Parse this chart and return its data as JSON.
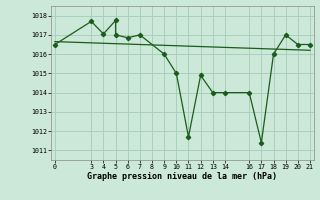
{
  "xlabel": "Graphe pression niveau de la mer (hPa)",
  "bg_color": "#cce8d8",
  "grid_color": "#aacfbc",
  "line_color": "#1a5c1a",
  "x_line": [
    0,
    3,
    4,
    5,
    5,
    6,
    7,
    9,
    10,
    11,
    12,
    13,
    14,
    16,
    17,
    18,
    19,
    20,
    21
  ],
  "y_line": [
    1016.5,
    1017.7,
    1017.05,
    1017.75,
    1017.0,
    1016.85,
    1017.0,
    1016.0,
    1015.0,
    1011.7,
    1014.9,
    1014.0,
    1014.0,
    1014.0,
    1011.4,
    1016.0,
    1017.0,
    1016.5,
    1016.5
  ],
  "trend_x": [
    0,
    21
  ],
  "trend_y": [
    1016.65,
    1016.2
  ],
  "ylim": [
    1010.5,
    1018.5
  ],
  "xlim": [
    -0.3,
    21.3
  ],
  "yticks": [
    1011,
    1012,
    1013,
    1014,
    1015,
    1016,
    1017,
    1018
  ],
  "xticks": [
    0,
    3,
    4,
    5,
    6,
    7,
    8,
    9,
    10,
    11,
    12,
    13,
    14,
    16,
    17,
    18,
    19,
    20,
    21
  ]
}
